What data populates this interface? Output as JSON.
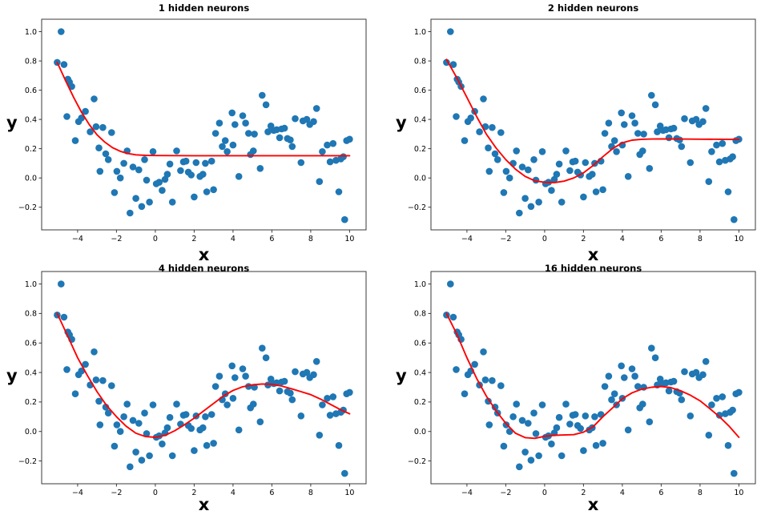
{
  "figure": {
    "background": "#ffffff",
    "grid": "2x2",
    "legend": "none",
    "gridlines": false
  },
  "chart_data": {
    "type": "scatter",
    "description": "Four subplots sharing one noisy scatter dataset, each with a red neural-network regression fit of increasing capacity",
    "colors": {
      "scatter": "#1f77b4",
      "curve": "#ff0000",
      "spine": "#3a3a3a"
    },
    "scatter_points": [
      [
        -5.05,
        0.79
      ],
      [
        -4.85,
        1.0
      ],
      [
        -4.7,
        0.775
      ],
      [
        -4.55,
        0.42
      ],
      [
        -4.5,
        0.675
      ],
      [
        -4.42,
        0.655
      ],
      [
        -4.3,
        0.625
      ],
      [
        -4.12,
        0.255
      ],
      [
        -3.95,
        0.385
      ],
      [
        -3.8,
        0.41
      ],
      [
        -3.6,
        0.455
      ],
      [
        -3.35,
        0.315
      ],
      [
        -3.15,
        0.54
      ],
      [
        -3.05,
        0.35
      ],
      [
        -2.9,
        0.205
      ],
      [
        -2.85,
        0.045
      ],
      [
        -2.7,
        0.345
      ],
      [
        -2.55,
        0.165
      ],
      [
        -2.42,
        0.125
      ],
      [
        -2.25,
        0.31
      ],
      [
        -2.1,
        -0.1
      ],
      [
        -1.98,
        0.045
      ],
      [
        -1.8,
        0.0
      ],
      [
        -1.62,
        0.1
      ],
      [
        -1.45,
        0.185
      ],
      [
        -1.3,
        -0.24
      ],
      [
        -1.15,
        0.075
      ],
      [
        -1.0,
        -0.14
      ],
      [
        -0.85,
        0.055
      ],
      [
        -0.7,
        -0.195
      ],
      [
        -0.55,
        0.125
      ],
      [
        -0.45,
        -0.015
      ],
      [
        -0.3,
        -0.165
      ],
      [
        -0.12,
        0.18
      ],
      [
        0.05,
        -0.04
      ],
      [
        0.2,
        -0.03
      ],
      [
        0.35,
        -0.085
      ],
      [
        0.5,
        -0.01
      ],
      [
        0.62,
        0.025
      ],
      [
        0.75,
        0.095
      ],
      [
        0.88,
        -0.165
      ],
      [
        1.1,
        0.185
      ],
      [
        1.3,
        0.05
      ],
      [
        1.45,
        0.11
      ],
      [
        1.58,
        0.115
      ],
      [
        1.7,
        0.04
      ],
      [
        1.85,
        0.02
      ],
      [
        2.0,
        -0.13
      ],
      [
        2.1,
        0.105
      ],
      [
        2.3,
        0.01
      ],
      [
        2.45,
        0.025
      ],
      [
        2.58,
        0.1
      ],
      [
        2.65,
        -0.095
      ],
      [
        2.9,
        0.115
      ],
      [
        3.0,
        -0.08
      ],
      [
        3.1,
        0.305
      ],
      [
        3.3,
        0.375
      ],
      [
        3.45,
        0.215
      ],
      [
        3.6,
        0.255
      ],
      [
        3.7,
        0.18
      ],
      [
        3.95,
        0.445
      ],
      [
        4.0,
        0.225
      ],
      [
        4.1,
        0.365
      ],
      [
        4.3,
        0.01
      ],
      [
        4.5,
        0.425
      ],
      [
        4.65,
        0.375
      ],
      [
        4.8,
        0.305
      ],
      [
        4.9,
        0.16
      ],
      [
        5.05,
        0.185
      ],
      [
        5.1,
        0.3
      ],
      [
        5.4,
        0.065
      ],
      [
        5.5,
        0.565
      ],
      [
        5.7,
        0.5
      ],
      [
        5.8,
        0.315
      ],
      [
        5.95,
        0.355
      ],
      [
        6.1,
        0.325
      ],
      [
        6.25,
        0.33
      ],
      [
        6.4,
        0.275
      ],
      [
        6.5,
        0.335
      ],
      [
        6.65,
        0.34
      ],
      [
        6.8,
        0.27
      ],
      [
        6.95,
        0.26
      ],
      [
        7.05,
        0.215
      ],
      [
        7.2,
        0.405
      ],
      [
        7.5,
        0.105
      ],
      [
        7.6,
        0.39
      ],
      [
        7.8,
        0.4
      ],
      [
        7.95,
        0.365
      ],
      [
        8.15,
        0.385
      ],
      [
        8.3,
        0.475
      ],
      [
        8.45,
        -0.025
      ],
      [
        8.6,
        0.18
      ],
      [
        8.85,
        0.225
      ],
      [
        9.0,
        0.11
      ],
      [
        9.15,
        0.235
      ],
      [
        9.3,
        0.12
      ],
      [
        9.45,
        -0.095
      ],
      [
        9.55,
        0.13
      ],
      [
        9.68,
        0.145
      ],
      [
        9.75,
        -0.285
      ],
      [
        9.85,
        0.255
      ],
      [
        10.0,
        0.265
      ]
    ],
    "subplots": [
      {
        "title": "1 hidden neurons",
        "xlabel": "x",
        "ylabel": "y",
        "xlim": [
          -5.85,
          10.85
        ],
        "ylim": [
          -0.355,
          1.085
        ],
        "xticks": [
          -4,
          -2,
          0,
          2,
          4,
          6,
          8,
          10
        ],
        "xtick_labels": [
          "−4",
          "−2",
          "0",
          "2",
          "4",
          "6",
          "8",
          "10"
        ],
        "yticks": [
          -0.2,
          0.0,
          0.2,
          0.4,
          0.6,
          0.8,
          1.0
        ],
        "ytick_labels": [
          "−0.2",
          "0.0",
          "0.2",
          "0.4",
          "0.6",
          "0.8",
          "1.0"
        ],
        "fit_curve": [
          [
            -5.05,
            0.79
          ],
          [
            -4.6,
            0.66
          ],
          [
            -4.2,
            0.55
          ],
          [
            -3.8,
            0.45
          ],
          [
            -3.4,
            0.365
          ],
          [
            -3.0,
            0.295
          ],
          [
            -2.6,
            0.245
          ],
          [
            -2.2,
            0.207
          ],
          [
            -1.8,
            0.182
          ],
          [
            -1.4,
            0.167
          ],
          [
            -1.0,
            0.158
          ],
          [
            -0.5,
            0.154
          ],
          [
            0,
            0.153
          ],
          [
            2,
            0.152
          ],
          [
            4,
            0.152
          ],
          [
            6,
            0.152
          ],
          [
            8,
            0.152
          ],
          [
            10,
            0.152
          ]
        ]
      },
      {
        "title": "2 hidden neurons",
        "xlabel": "x",
        "ylabel": "y",
        "xlim": [
          -5.85,
          10.85
        ],
        "ylim": [
          -0.355,
          1.085
        ],
        "xticks": [
          -4,
          -2,
          0,
          2,
          4,
          6,
          8,
          10
        ],
        "xtick_labels": [
          "−4",
          "−2",
          "0",
          "2",
          "4",
          "6",
          "8",
          "10"
        ],
        "yticks": [
          -0.2,
          0.0,
          0.2,
          0.4,
          0.6,
          0.8,
          1.0
        ],
        "ytick_labels": [
          "−0.2",
          "0.0",
          "0.2",
          "0.4",
          "0.6",
          "0.8",
          "1.0"
        ],
        "fit_curve": [
          [
            -5.05,
            0.81
          ],
          [
            -4.5,
            0.68
          ],
          [
            -4.0,
            0.55
          ],
          [
            -3.5,
            0.42
          ],
          [
            -3.0,
            0.3
          ],
          [
            -2.5,
            0.205
          ],
          [
            -2.0,
            0.125
          ],
          [
            -1.5,
            0.06
          ],
          [
            -1.0,
            0.01
          ],
          [
            -0.5,
            -0.02
          ],
          [
            0,
            -0.03
          ],
          [
            0.5,
            -0.032
          ],
          [
            1.0,
            -0.022
          ],
          [
            1.5,
            0.0
          ],
          [
            2.0,
            0.035
          ],
          [
            2.5,
            0.085
          ],
          [
            3.0,
            0.145
          ],
          [
            3.5,
            0.2
          ],
          [
            4.0,
            0.24
          ],
          [
            4.5,
            0.258
          ],
          [
            5.0,
            0.264
          ],
          [
            5.5,
            0.266
          ],
          [
            6.0,
            0.267
          ],
          [
            7.0,
            0.266
          ],
          [
            8.0,
            0.265
          ],
          [
            9.0,
            0.264
          ],
          [
            10.0,
            0.263
          ]
        ]
      },
      {
        "title": "4 hidden neurons",
        "xlabel": "x",
        "ylabel": "y",
        "xlim": [
          -5.85,
          10.85
        ],
        "ylim": [
          -0.355,
          1.085
        ],
        "xticks": [
          -4,
          -2,
          0,
          2,
          4,
          6,
          8,
          10
        ],
        "xtick_labels": [
          "−4",
          "−2",
          "0",
          "2",
          "4",
          "6",
          "8",
          "10"
        ],
        "yticks": [
          -0.2,
          0.0,
          0.2,
          0.4,
          0.6,
          0.8,
          1.0
        ],
        "ytick_labels": [
          "−0.2",
          "0.0",
          "0.2",
          "0.4",
          "0.6",
          "0.8",
          "1.0"
        ],
        "fit_curve": [
          [
            -5.05,
            0.8
          ],
          [
            -4.5,
            0.645
          ],
          [
            -4.0,
            0.5
          ],
          [
            -3.5,
            0.38
          ],
          [
            -3.0,
            0.27
          ],
          [
            -2.5,
            0.175
          ],
          [
            -2.0,
            0.1
          ],
          [
            -1.5,
            0.035
          ],
          [
            -1.0,
            -0.012
          ],
          [
            -0.5,
            -0.035
          ],
          [
            0,
            -0.04
          ],
          [
            0.5,
            -0.027
          ],
          [
            1.0,
            0.005
          ],
          [
            1.5,
            0.045
          ],
          [
            2.0,
            0.09
          ],
          [
            2.5,
            0.14
          ],
          [
            3.0,
            0.19
          ],
          [
            3.5,
            0.24
          ],
          [
            4.0,
            0.278
          ],
          [
            4.5,
            0.303
          ],
          [
            5.0,
            0.316
          ],
          [
            5.5,
            0.322
          ],
          [
            6.0,
            0.32
          ],
          [
            6.5,
            0.308
          ],
          [
            7.0,
            0.29
          ],
          [
            7.5,
            0.27
          ],
          [
            8.0,
            0.25
          ],
          [
            8.5,
            0.22
          ],
          [
            9.0,
            0.185
          ],
          [
            9.5,
            0.15
          ],
          [
            10.0,
            0.12
          ]
        ]
      },
      {
        "title": "16 hidden neurons",
        "xlabel": "x",
        "ylabel": "y",
        "xlim": [
          -5.85,
          10.85
        ],
        "ylim": [
          -0.355,
          1.085
        ],
        "xticks": [
          -4,
          -2,
          0,
          2,
          4,
          6,
          8,
          10
        ],
        "xtick_labels": [
          "−4",
          "−2",
          "0",
          "2",
          "4",
          "6",
          "8",
          "10"
        ],
        "yticks": [
          -0.2,
          0.0,
          0.2,
          0.4,
          0.6,
          0.8,
          1.0
        ],
        "ytick_labels": [
          "−0.2",
          "0.0",
          "0.2",
          "0.4",
          "0.6",
          "0.8",
          "1.0"
        ],
        "fit_curve": [
          [
            -5.05,
            0.8
          ],
          [
            -4.5,
            0.655
          ],
          [
            -4.0,
            0.5
          ],
          [
            -3.5,
            0.36
          ],
          [
            -3.0,
            0.24
          ],
          [
            -2.5,
            0.14
          ],
          [
            -2.0,
            0.055
          ],
          [
            -1.5,
            -0.012
          ],
          [
            -1.0,
            -0.042
          ],
          [
            -0.5,
            -0.047
          ],
          [
            0,
            -0.033
          ],
          [
            0.5,
            -0.026
          ],
          [
            1.0,
            -0.024
          ],
          [
            1.5,
            -0.022
          ],
          [
            2.0,
            -0.005
          ],
          [
            2.5,
            0.032
          ],
          [
            3.0,
            0.1
          ],
          [
            3.5,
            0.16
          ],
          [
            4.0,
            0.222
          ],
          [
            4.5,
            0.262
          ],
          [
            5.0,
            0.287
          ],
          [
            5.5,
            0.3
          ],
          [
            6.0,
            0.305
          ],
          [
            6.5,
            0.297
          ],
          [
            7.0,
            0.276
          ],
          [
            7.5,
            0.246
          ],
          [
            8.0,
            0.208
          ],
          [
            8.5,
            0.155
          ],
          [
            9.0,
            0.1
          ],
          [
            9.5,
            0.035
          ],
          [
            10.0,
            -0.04
          ]
        ]
      }
    ]
  }
}
